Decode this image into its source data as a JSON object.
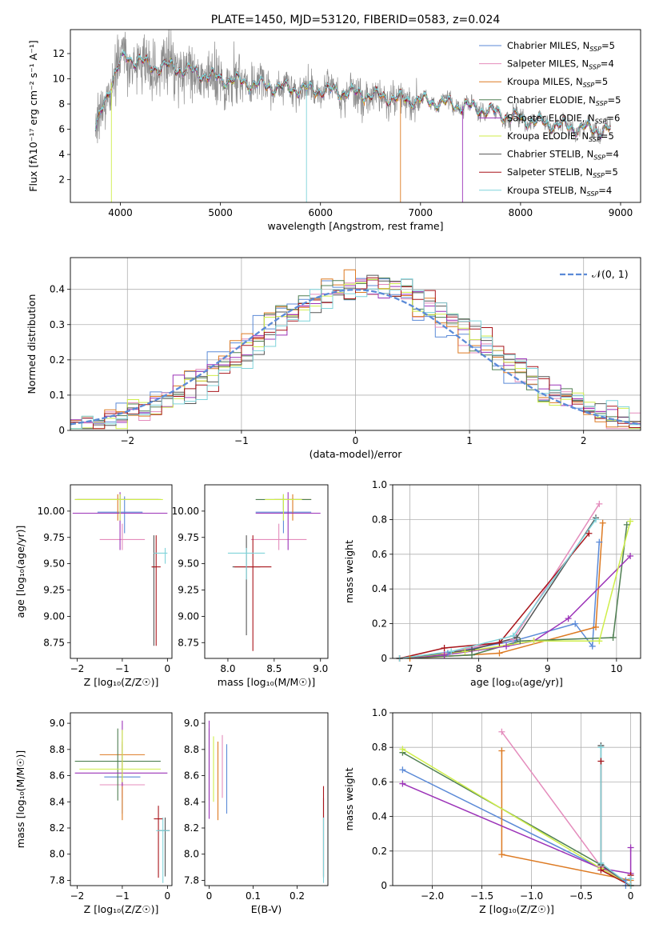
{
  "series_styles": [
    {
      "name": "Chabrier MILES",
      "sub": "SSP",
      "n": "5",
      "color": "#5b8ad7"
    },
    {
      "name": "Salpeter MILES",
      "sub": "SSP",
      "n": "4",
      "color": "#e48cbc"
    },
    {
      "name": "Kroupa MILES",
      "sub": "SSP",
      "n": "5",
      "color": "#dd7a22"
    },
    {
      "name": "Chabrier ELODIE",
      "sub": "SSP",
      "n": "5",
      "color": "#4f7f52"
    },
    {
      "name": "Salpeter ELODIE",
      "sub": "SSP",
      "n": "6",
      "color": "#9c33b8"
    },
    {
      "name": "Kroupa ELODIE",
      "sub": "SSP",
      "n": "5",
      "color": "#cfee4a"
    },
    {
      "name": "Chabrier STELIB",
      "sub": "SSP",
      "n": "4",
      "color": "#555555"
    },
    {
      "name": "Salpeter STELIB",
      "sub": "SSP",
      "n": "5",
      "color": "#a8141a"
    },
    {
      "name": "Kroupa STELIB",
      "sub": "SSP",
      "n": "4",
      "color": "#7fd3da"
    }
  ],
  "data_color": "#8c8c8c",
  "chart_data": [
    {
      "id": "spectrum",
      "type": "line",
      "title": "PLATE=1450, MJD=53120, FIBERID=0583, z=0.024",
      "xlabel": "wavelength [Angstrom, rest frame]",
      "ylabel": "Flux [fλ10⁻¹⁷ erg cm⁻² s⁻¹ A⁻¹]",
      "xlim": [
        3500,
        9200
      ],
      "ylim": [
        0.2,
        13.9
      ],
      "xticks": [
        4000,
        5000,
        6000,
        7000,
        8000,
        9000
      ],
      "yticks": [
        2,
        4,
        6,
        8,
        10,
        12
      ],
      "grid": false,
      "legend": "top-right",
      "continuum": {
        "x": [
          3750,
          3800,
          3850,
          3900,
          3950,
          4000,
          4050,
          4100,
          4200,
          4300,
          4400,
          4500,
          4700,
          5000,
          5200,
          5400,
          5600,
          6000,
          6300,
          6600,
          6800,
          7000,
          7300,
          7600,
          7800,
          8000,
          8300,
          8600,
          8900
        ],
        "y": [
          5.8,
          7.2,
          8.4,
          9.5,
          10.4,
          11.2,
          11.8,
          11.6,
          11.4,
          11.0,
          10.9,
          11.0,
          10.6,
          10.0,
          9.8,
          9.5,
          9.3,
          9.1,
          8.9,
          8.6,
          8.4,
          8.3,
          8.0,
          7.6,
          7.2,
          6.8,
          6.4,
          6.1,
          5.9
        ]
      }
    },
    {
      "id": "residuals",
      "type": "step",
      "xlabel": "(data-model)/error",
      "ylabel": "Normed distribution",
      "xlim": [
        -2.5,
        2.5
      ],
      "ylim": [
        0,
        0.49
      ],
      "xticks": [
        -2,
        -1,
        0,
        1,
        2
      ],
      "yticks": [
        0.0,
        0.1,
        0.2,
        0.3,
        0.4
      ],
      "grid": true,
      "legend": "top-right",
      "reference_label": "𝒩(0, 1)",
      "reference_color": "#5b8ad7",
      "bin_width": 0.1
    },
    {
      "id": "age_Z",
      "type": "errorbar",
      "xlabel": "Z [log₁₀(Z/Z☉)]",
      "ylabel": "age  [log₁₀(age/yr)]",
      "xlim": [
        -2.15,
        0.1
      ],
      "ylim": [
        8.6,
        10.25
      ],
      "xticks": [
        -2,
        -1,
        0
      ],
      "yticks": [
        8.75,
        9.0,
        9.25,
        9.5,
        9.75,
        10.0
      ],
      "grid": false,
      "points": [
        {
          "s": 0,
          "x": -0.95,
          "y": 9.99,
          "xerr": [
            0.6,
            0.4
          ],
          "yerr": [
            0.2,
            0.15
          ]
        },
        {
          "s": 1,
          "x": -1.0,
          "y": 9.73,
          "xerr": [
            0.5,
            0.5
          ],
          "yerr": [
            0.1,
            0.15
          ]
        },
        {
          "s": 2,
          "x": -1.1,
          "y": 10.11,
          "xerr": [
            0.9,
            0.9
          ],
          "yerr": [
            0.2,
            0.05
          ]
        },
        {
          "s": 3,
          "x": -1.05,
          "y": 10.11,
          "xerr": [
            1.0,
            0.9
          ],
          "yerr": [
            0.1,
            0.05
          ]
        },
        {
          "s": 4,
          "x": -1.05,
          "y": 9.98,
          "xerr": [
            1.05,
            1.05
          ],
          "yerr": [
            0.35,
            0.2
          ]
        },
        {
          "s": 5,
          "x": -1.05,
          "y": 10.11,
          "xerr": [
            1.0,
            0.95
          ],
          "yerr": [
            0.2,
            0.05
          ]
        },
        {
          "s": 6,
          "x": -0.3,
          "y": 9.47,
          "xerr": [
            0.05,
            0.05
          ],
          "yerr": [
            0.75,
            0.3
          ]
        },
        {
          "s": 7,
          "x": -0.25,
          "y": 9.47,
          "xerr": [
            0.1,
            0.1
          ],
          "yerr": [
            0.75,
            0.3
          ]
        },
        {
          "s": 8,
          "x": -0.05,
          "y": 9.6,
          "xerr": [
            0.25,
            0.05
          ],
          "yerr": [
            0.1,
            0.05
          ]
        }
      ]
    },
    {
      "id": "age_mass",
      "type": "errorbar",
      "xlabel": "mass [log₁₀(M/M☉)]",
      "ylabel": "",
      "xlim": [
        7.75,
        9.08
      ],
      "ylim": [
        8.6,
        10.25
      ],
      "xticks": [
        8.0,
        8.5,
        9.0
      ],
      "yticks": [
        8.75,
        9.0,
        9.25,
        9.5,
        9.75,
        10.0
      ],
      "grid": false,
      "points": [
        {
          "s": 0,
          "x": 8.6,
          "y": 9.99,
          "xerr": [
            0.3,
            0.3
          ],
          "yerr": [
            0.2,
            0.15
          ]
        },
        {
          "s": 1,
          "x": 8.55,
          "y": 9.73,
          "xerr": [
            0.3,
            0.3
          ],
          "yerr": [
            0.1,
            0.15
          ]
        },
        {
          "s": 2,
          "x": 8.7,
          "y": 10.11,
          "xerr": [
            0.2,
            0.2
          ],
          "yerr": [
            0.2,
            0.05
          ]
        },
        {
          "s": 3,
          "x": 8.6,
          "y": 10.11,
          "xerr": [
            0.3,
            0.3
          ],
          "yerr": [
            0.1,
            0.05
          ]
        },
        {
          "s": 4,
          "x": 8.65,
          "y": 9.98,
          "xerr": [
            0.35,
            0.35
          ],
          "yerr": [
            0.35,
            0.2
          ]
        },
        {
          "s": 5,
          "x": 8.6,
          "y": 10.11,
          "xerr": [
            0.2,
            0.2
          ],
          "yerr": [
            0.2,
            0.05
          ]
        },
        {
          "s": 6,
          "x": 8.2,
          "y": 9.47,
          "xerr": [
            0.15,
            0.15
          ],
          "yerr": [
            0.65,
            0.3
          ]
        },
        {
          "s": 7,
          "x": 8.27,
          "y": 9.47,
          "xerr": [
            0.2,
            0.2
          ],
          "yerr": [
            0.8,
            0.3
          ]
        },
        {
          "s": 8,
          "x": 8.2,
          "y": 9.6,
          "xerr": [
            0.2,
            0.2
          ],
          "yerr": [
            0.25,
            0.05
          ]
        }
      ]
    },
    {
      "id": "weight_age",
      "type": "line",
      "xlabel": "age  [log₁₀(age/yr)]",
      "ylabel": "mass weight",
      "xlim": [
        6.75,
        10.35
      ],
      "ylim": [
        0,
        1.0
      ],
      "xticks": [
        7,
        8,
        9,
        10
      ],
      "yticks": [
        0.0,
        0.2,
        0.4,
        0.6,
        0.8,
        1.0
      ],
      "grid": true,
      "lines": [
        {
          "s": 0,
          "x": [
            6.85,
            7.55,
            8.5,
            9.4,
            9.65,
            9.75
          ],
          "y": [
            0.0,
            0.03,
            0.1,
            0.2,
            0.07,
            0.67
          ]
        },
        {
          "s": 1,
          "x": [
            6.85,
            7.5,
            8.5,
            9.75
          ],
          "y": [
            0.0,
            0.03,
            0.11,
            0.89
          ]
        },
        {
          "s": 2,
          "x": [
            7.0,
            8.3,
            9.7,
            9.8
          ],
          "y": [
            0.0,
            0.03,
            0.18,
            0.78
          ]
        },
        {
          "s": 3,
          "x": [
            6.85,
            7.9,
            8.6,
            9.95,
            10.15
          ],
          "y": [
            0.0,
            0.02,
            0.1,
            0.12,
            0.77
          ]
        },
        {
          "s": 4,
          "x": [
            6.85,
            7.5,
            8.4,
            8.8,
            9.3,
            10.2
          ],
          "y": [
            0.0,
            0.02,
            0.07,
            0.1,
            0.23,
            0.59
          ]
        },
        {
          "s": 5,
          "x": [
            6.85,
            7.8,
            8.8,
            9.75,
            10.2
          ],
          "y": [
            0.0,
            0.04,
            0.1,
            0.1,
            0.79
          ]
        },
        {
          "s": 6,
          "x": [
            6.85,
            7.9,
            8.55,
            9.7
          ],
          "y": [
            0.0,
            0.05,
            0.12,
            0.81
          ]
        },
        {
          "s": 7,
          "x": [
            6.85,
            7.5,
            8.3,
            9.6
          ],
          "y": [
            0.0,
            0.06,
            0.09,
            0.72
          ]
        },
        {
          "s": 8,
          "x": [
            6.85,
            7.6,
            8.5,
            9.7
          ],
          "y": [
            0.0,
            0.04,
            0.13,
            0.8
          ]
        }
      ]
    },
    {
      "id": "mass_Z",
      "type": "errorbar",
      "xlabel": "Z [log₁₀(Z/Z☉)]",
      "ylabel": "mass [log₁₀(M/M☉)]",
      "xlim": [
        -2.15,
        0.1
      ],
      "ylim": [
        7.76,
        9.08
      ],
      "xticks": [
        -2,
        -1,
        0
      ],
      "yticks": [
        7.8,
        8.0,
        8.2,
        8.4,
        8.6,
        8.8,
        9.0
      ],
      "grid": false,
      "points": [
        {
          "s": 0,
          "x": -1.0,
          "y": 8.59,
          "xerr": [
            0.4,
            0.4
          ],
          "yerr": [
            0.28,
            0.25
          ]
        },
        {
          "s": 1,
          "x": -1.0,
          "y": 8.53,
          "xerr": [
            0.5,
            0.5
          ],
          "yerr": [
            0.1,
            0.1
          ]
        },
        {
          "s": 2,
          "x": -1.0,
          "y": 8.76,
          "xerr": [
            0.5,
            0.5
          ],
          "yerr": [
            0.5,
            0.1
          ]
        },
        {
          "s": 3,
          "x": -1.1,
          "y": 8.71,
          "xerr": [
            0.95,
            0.95
          ],
          "yerr": [
            0.3,
            0.25
          ]
        },
        {
          "s": 4,
          "x": -1.0,
          "y": 8.62,
          "xerr": [
            1.05,
            1.0
          ],
          "yerr": [
            0.1,
            0.4
          ]
        },
        {
          "s": 5,
          "x": -1.0,
          "y": 8.65,
          "xerr": [
            0.95,
            0.85
          ],
          "yerr": [
            0.1,
            0.3
          ]
        },
        {
          "s": 6,
          "x": -0.05,
          "y": 8.18,
          "xerr": [
            0.15,
            0.1
          ],
          "yerr": [
            0.35,
            0.1
          ]
        },
        {
          "s": 7,
          "x": -0.2,
          "y": 8.27,
          "xerr": [
            0.1,
            0.1
          ],
          "yerr": [
            0.45,
            0.1
          ]
        },
        {
          "s": 8,
          "x": -0.1,
          "y": 8.18,
          "xerr": [
            0.15,
            0.15
          ],
          "yerr": [
            0.4,
            0.1
          ]
        }
      ]
    },
    {
      "id": "mass_ebv",
      "type": "errorbar",
      "xlabel": "E(B-V)",
      "ylabel": "",
      "xlim": [
        -0.01,
        0.27
      ],
      "ylim": [
        7.76,
        9.08
      ],
      "xticks": [
        0.0,
        0.1,
        0.2
      ],
      "yticks": [
        7.8,
        8.0,
        8.2,
        8.4,
        8.6,
        8.8,
        9.0
      ],
      "grid": false,
      "points": [
        {
          "s": 0,
          "x": 0.04,
          "y": 8.59,
          "xerr": [
            0,
            0
          ],
          "yerr": [
            0.28,
            0.25
          ]
        },
        {
          "s": 1,
          "x": 0.03,
          "y": 8.53,
          "xerr": [
            0,
            0
          ],
          "yerr": [
            0.1,
            0.38
          ]
        },
        {
          "s": 2,
          "x": 0.02,
          "y": 8.76,
          "xerr": [
            0,
            0
          ],
          "yerr": [
            0.5,
            0.1
          ]
        },
        {
          "s": 3,
          "x": 0.0,
          "y": 8.71,
          "xerr": [
            0,
            0
          ],
          "yerr": [
            0.3,
            0.25
          ]
        },
        {
          "s": 4,
          "x": 0.0,
          "y": 8.62,
          "xerr": [
            0,
            0
          ],
          "yerr": [
            0.35,
            0.4
          ]
        },
        {
          "s": 5,
          "x": 0.01,
          "y": 8.65,
          "xerr": [
            0,
            0
          ],
          "yerr": [
            0.25,
            0.25
          ]
        },
        {
          "s": 6,
          "x": 0.26,
          "y": 8.18,
          "xerr": [
            0,
            0
          ],
          "yerr": [
            0.35,
            0.25
          ]
        },
        {
          "s": 7,
          "x": 0.26,
          "y": 8.27,
          "xerr": [
            0,
            0
          ],
          "yerr": [
            0.45,
            0.25
          ]
        },
        {
          "s": 8,
          "x": 0.26,
          "y": 8.18,
          "xerr": [
            0,
            0
          ],
          "yerr": [
            0.4,
            0.1
          ]
        }
      ]
    },
    {
      "id": "weight_Z",
      "type": "line",
      "xlabel": "Z [log₁₀(Z/Z☉)]",
      "ylabel": "mass weight",
      "xlim": [
        -2.4,
        0.1
      ],
      "ylim": [
        0,
        1.0
      ],
      "xticks": [
        -2.0,
        -1.5,
        -1.0,
        -0.5,
        0.0
      ],
      "yticks": [
        0.0,
        0.2,
        0.4,
        0.6,
        0.8,
        1.0
      ],
      "grid": true,
      "lines": [
        {
          "s": 0,
          "x": [
            -2.3,
            -0.05,
            -0.05
          ],
          "y": [
            0.67,
            0.03,
            0.0
          ]
        },
        {
          "s": 1,
          "x": [
            -1.3,
            -0.3,
            0.0
          ],
          "y": [
            0.89,
            0.11,
            0.0
          ]
        },
        {
          "s": 2,
          "x": [
            -1.3,
            -1.3,
            0.0
          ],
          "y": [
            0.78,
            0.18,
            0.03
          ]
        },
        {
          "s": 3,
          "x": [
            -2.3,
            -0.3,
            0.0
          ],
          "y": [
            0.77,
            0.12,
            0.0
          ]
        },
        {
          "s": 4,
          "x": [
            -2.3,
            -0.3,
            0.0,
            0.0
          ],
          "y": [
            0.59,
            0.1,
            0.07,
            0.22
          ]
        },
        {
          "s": 5,
          "x": [
            -2.3,
            -0.3,
            0.0
          ],
          "y": [
            0.79,
            0.1,
            0.0
          ]
        },
        {
          "s": 6,
          "x": [
            -0.3,
            -0.3,
            0.0
          ],
          "y": [
            0.81,
            0.12,
            0.0
          ]
        },
        {
          "s": 7,
          "x": [
            -0.3,
            -0.3,
            0.0,
            0.0
          ],
          "y": [
            0.72,
            0.09,
            0.0,
            0.06
          ]
        },
        {
          "s": 8,
          "x": [
            -0.3,
            -0.3,
            0.0,
            0.0
          ],
          "y": [
            0.8,
            0.13,
            0.0,
            0.04
          ]
        }
      ]
    }
  ]
}
